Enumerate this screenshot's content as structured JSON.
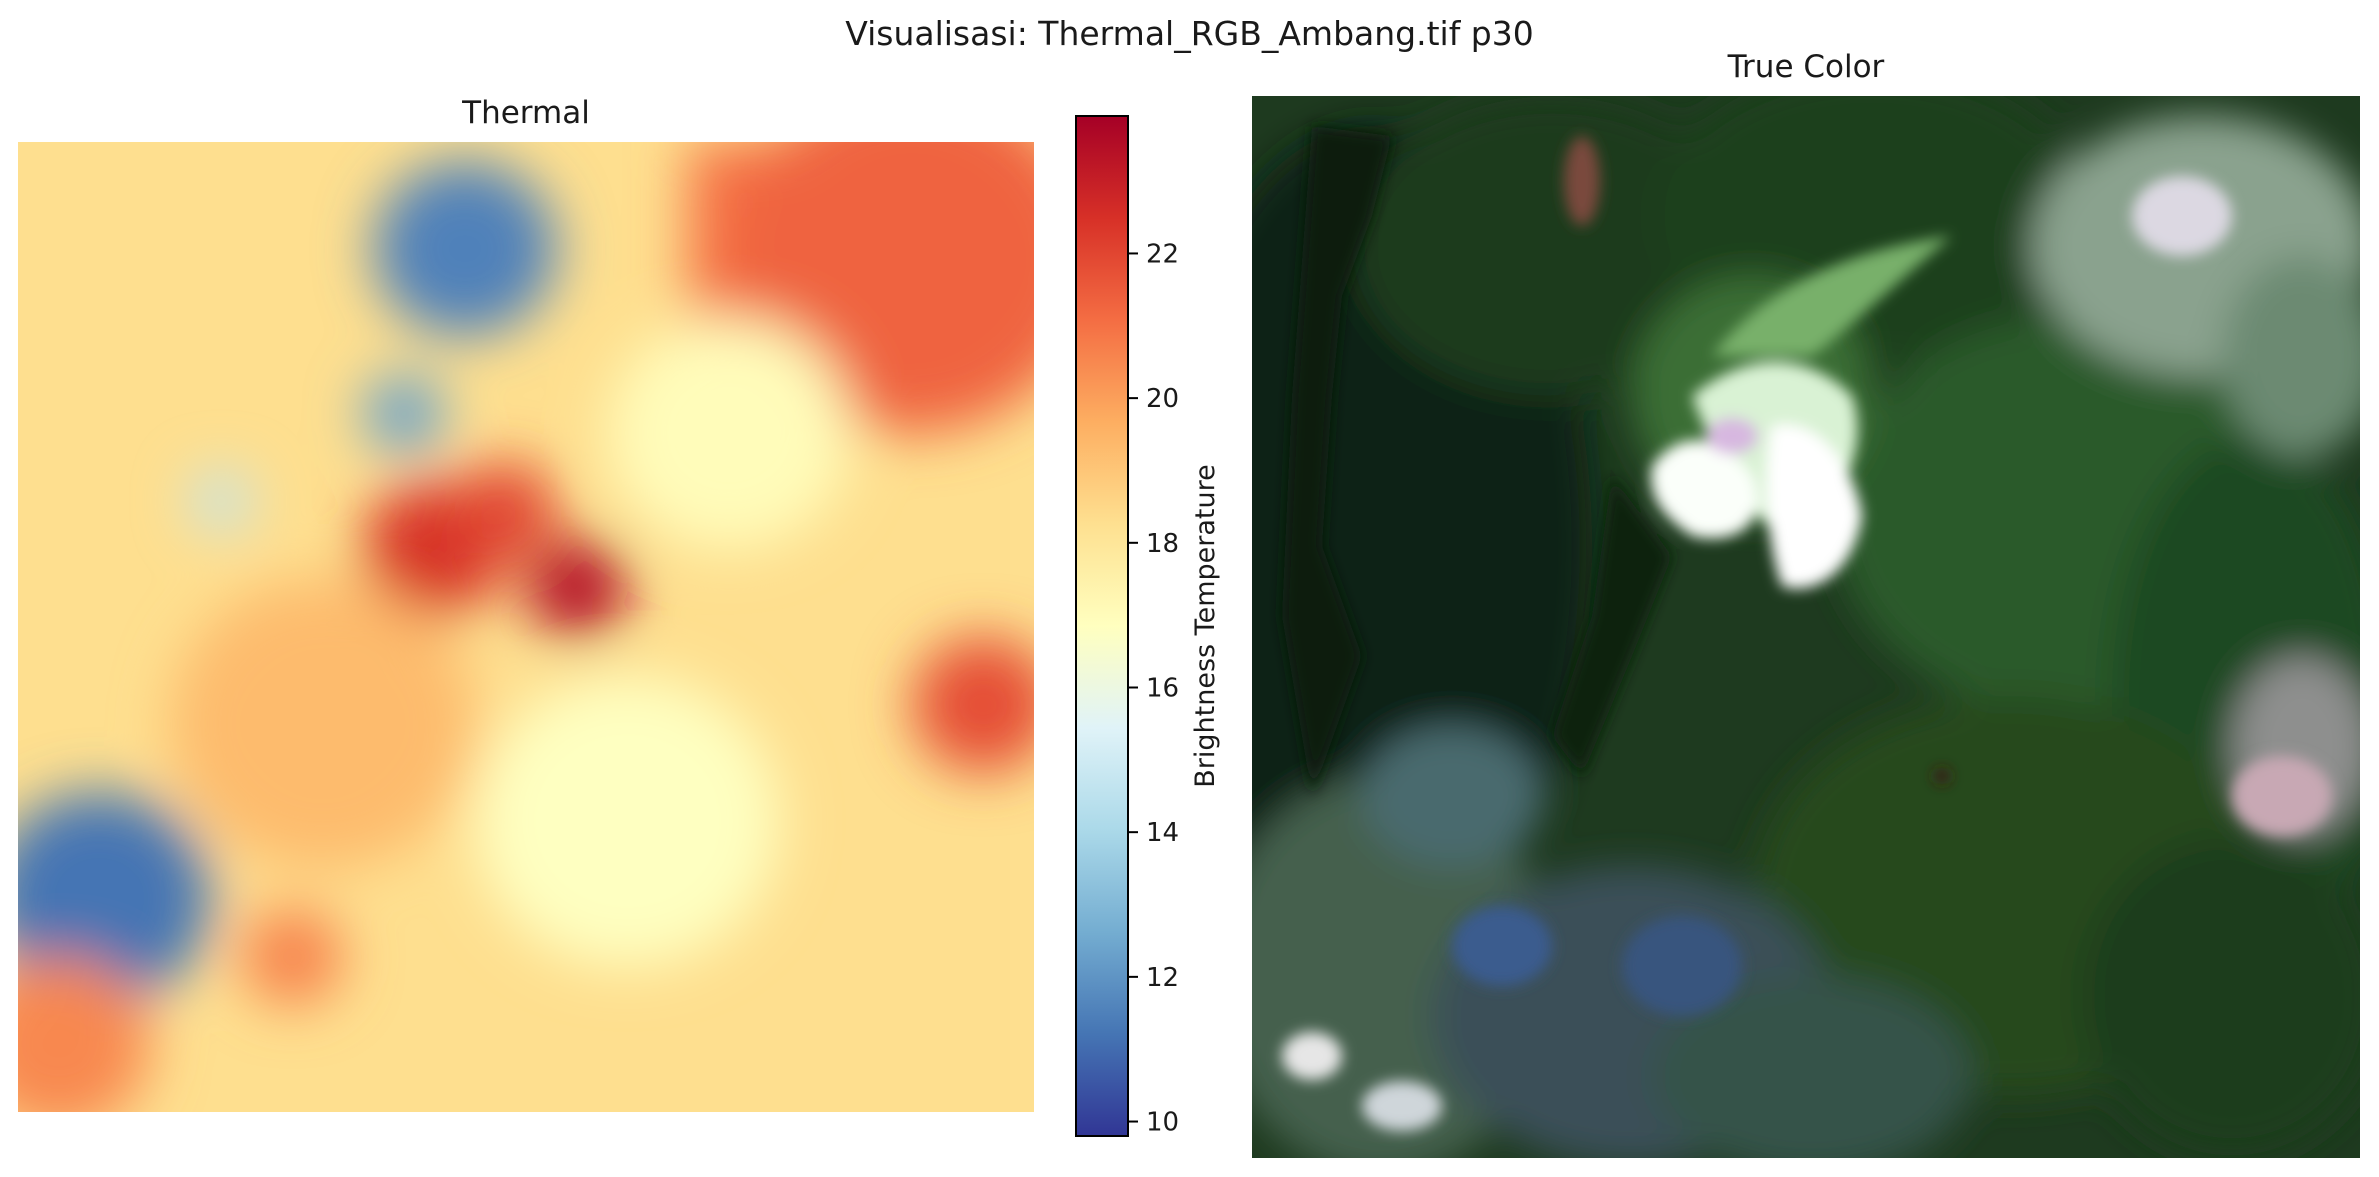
{
  "figure": {
    "suptitle": "Visualisasi: Thermal_RGB_Ambang.tif p30"
  },
  "chart_data": [
    {
      "type": "heatmap",
      "title": "Thermal",
      "colormap": "RdYlBu_r",
      "colorbar": {
        "label": "Brightness Temperature",
        "range": [
          9.8,
          23.9
        ],
        "ticks": [
          10,
          12,
          14,
          16,
          18,
          20,
          22
        ],
        "colors": [
          "#313695",
          "#4575b4",
          "#74add1",
          "#abd9e9",
          "#e0f3f8",
          "#ffffbf",
          "#fee090",
          "#fdae61",
          "#f46d43",
          "#d73027",
          "#a50026"
        ]
      },
      "background_value": 18.3,
      "regions": [
        {
          "type": "rect",
          "x0": 0.66,
          "y0": 0.0,
          "x1": 1.0,
          "y1": 0.22,
          "value": 21.0
        },
        {
          "type": "blob",
          "cx": 0.88,
          "cy": 0.12,
          "r": 0.18,
          "value": 21.3
        },
        {
          "type": "blob",
          "cx": 0.44,
          "cy": 0.11,
          "r": 0.09,
          "value": 11.5
        },
        {
          "type": "blob",
          "cx": 0.38,
          "cy": 0.28,
          "r": 0.04,
          "value": 12.3
        },
        {
          "type": "blob",
          "cx": 0.41,
          "cy": 0.42,
          "r": 0.07,
          "value": 22.5
        },
        {
          "type": "blob",
          "cx": 0.55,
          "cy": 0.46,
          "r": 0.05,
          "value": 23.5
        },
        {
          "type": "blob",
          "cx": 0.48,
          "cy": 0.38,
          "r": 0.05,
          "value": 22.0
        },
        {
          "type": "blob",
          "cx": 0.95,
          "cy": 0.58,
          "r": 0.07,
          "value": 21.8
        },
        {
          "type": "blob",
          "cx": 0.08,
          "cy": 0.78,
          "r": 0.11,
          "value": 11.2
        },
        {
          "type": "blob",
          "cx": 0.04,
          "cy": 0.93,
          "r": 0.09,
          "value": 20.5
        },
        {
          "type": "blob",
          "cx": 0.27,
          "cy": 0.84,
          "r": 0.05,
          "value": 20.6
        },
        {
          "type": "blob",
          "cx": 0.2,
          "cy": 0.37,
          "r": 0.03,
          "value": 14.6
        },
        {
          "type": "blob",
          "cx": 0.7,
          "cy": 0.3,
          "r": 0.12,
          "value": 17.0
        },
        {
          "type": "blob",
          "cx": 0.3,
          "cy": 0.6,
          "r": 0.15,
          "value": 19.3
        },
        {
          "type": "blob",
          "cx": 0.6,
          "cy": 0.7,
          "r": 0.15,
          "value": 16.8
        }
      ]
    },
    {
      "type": "image",
      "title": "True Color"
    }
  ]
}
